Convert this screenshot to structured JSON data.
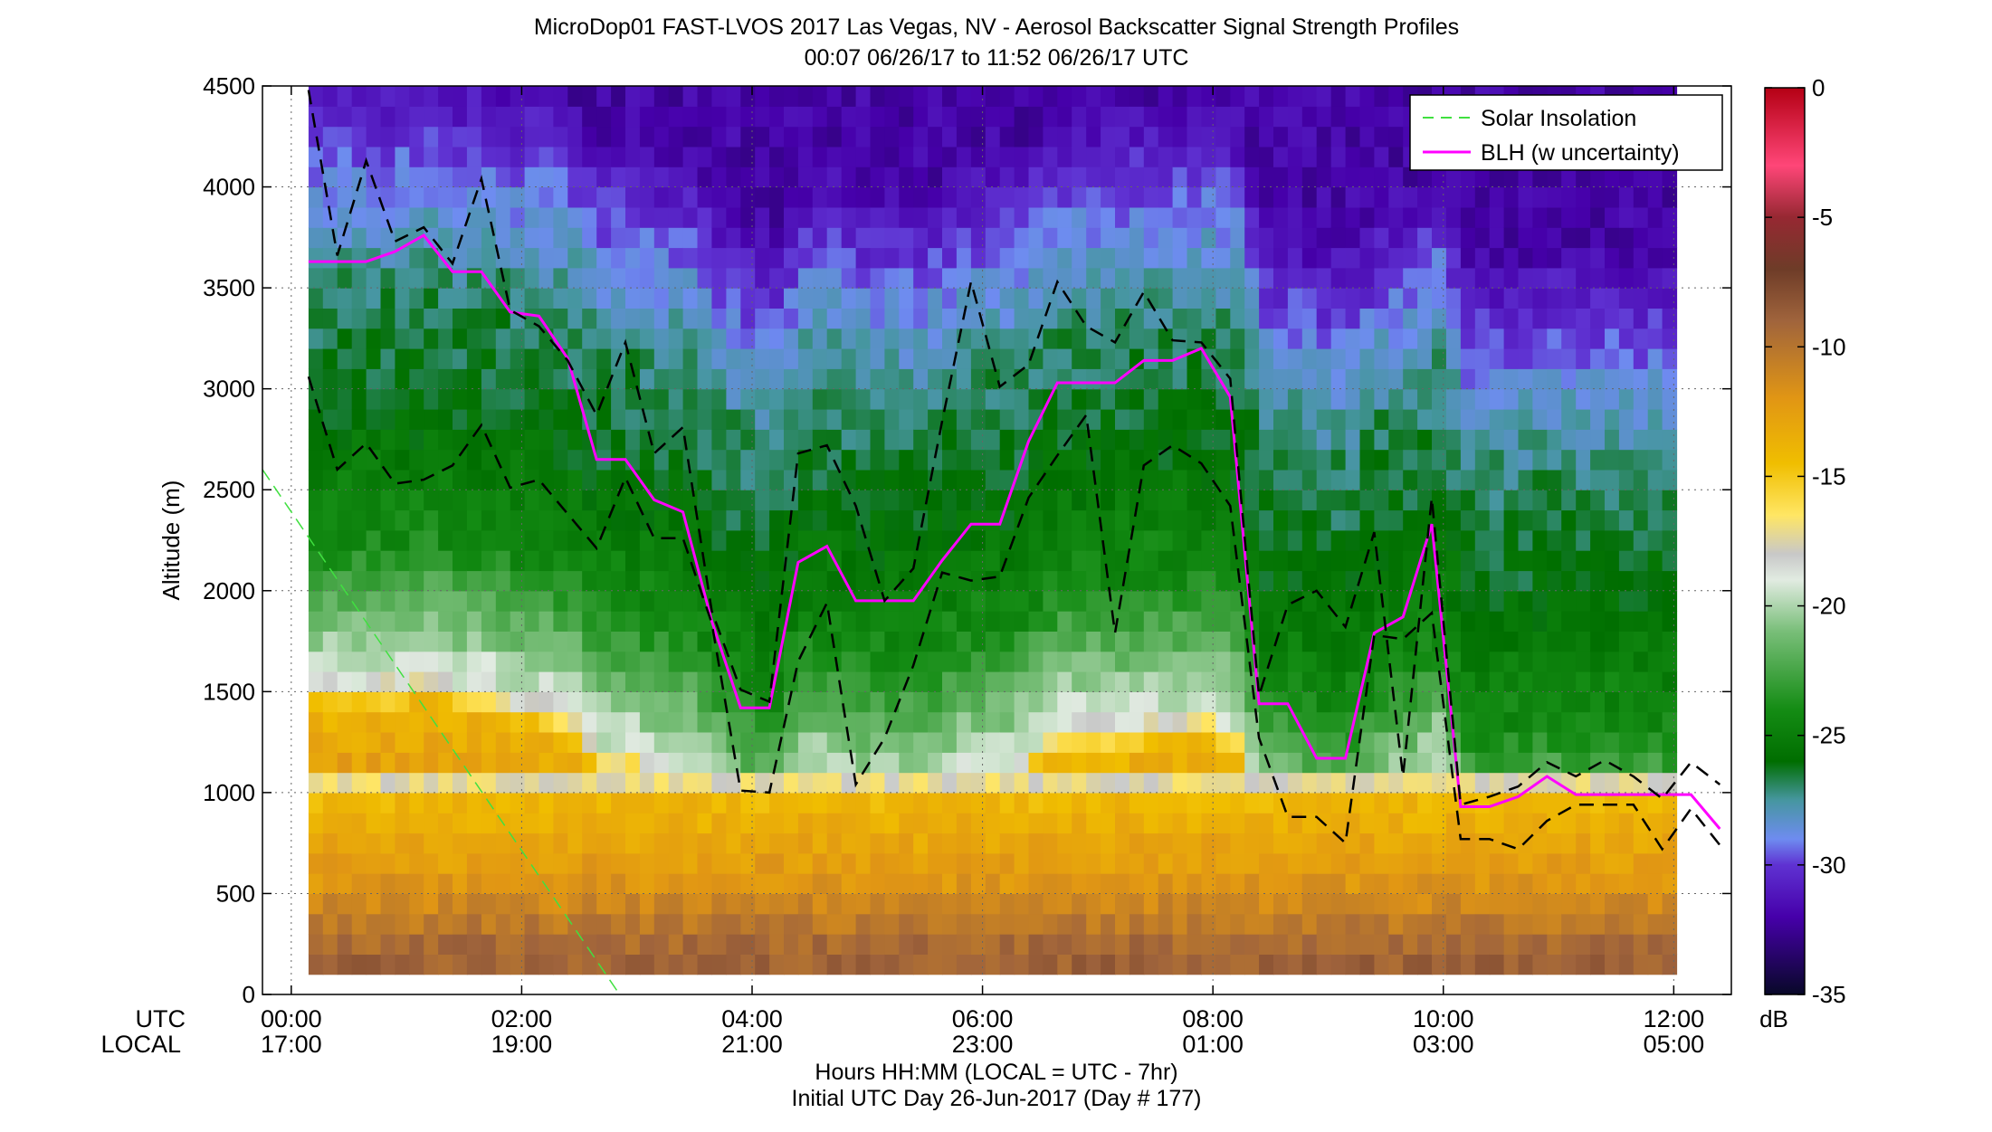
{
  "chart_data": {
    "type": "heatmap",
    "title": "MicroDop01 FAST-LVOS 2017 Las Vegas, NV - Aerosol Backscatter Signal Strength Profiles",
    "subtitle": "00:07 06/26/17 to 11:52 06/26/17  UTC",
    "ylabel": "Altitude (m)",
    "ylim": [
      0,
      4500
    ],
    "y_ticks": [
      "0",
      "500",
      "1000",
      "1500",
      "2000",
      "2500",
      "3000",
      "3500",
      "4000",
      "4500"
    ],
    "y_tick_values": [
      0,
      500,
      1000,
      1500,
      2000,
      2500,
      3000,
      3500,
      4000,
      4500
    ],
    "xlim_hours_utc": [
      -0.25,
      12.5
    ],
    "x_tick_hours": [
      0,
      2,
      4,
      6,
      8,
      10,
      12
    ],
    "x_ticks_utc": [
      "00:00",
      "02:00",
      "04:00",
      "06:00",
      "08:00",
      "10:00",
      "12:00"
    ],
    "x_ticks_local": [
      "17:00",
      "19:00",
      "21:00",
      "23:00",
      "01:00",
      "03:00",
      "05:00"
    ],
    "x_row_label_utc": "UTC",
    "x_row_label_local": "LOCAL",
    "xlabel": "Hours HH:MM  (LOCAL = UTC - 7hr)",
    "xlabel2": "Initial UTC Day 26-Jun-2017 (Day # 177)",
    "grid": true,
    "legend_position": "top-right",
    "legend": [
      "Solar Insolation",
      "BLH (w uncertainty)"
    ],
    "colorbar": {
      "label": "dB",
      "range": [
        -35,
        0
      ],
      "ticks": [
        "0",
        "-5",
        "-10",
        "-15",
        "-20",
        "-25",
        "-30",
        "-35"
      ],
      "tick_values": [
        0,
        -5,
        -10,
        -15,
        -20,
        -25,
        -30,
        -35
      ]
    },
    "heatmap_profile": {
      "data_time_range_hours": [
        0.15,
        11.92
      ],
      "data_altitude_range_m": [
        100,
        4500
      ],
      "description_levels_db": [
        {
          "alt": 150,
          "db": -9
        },
        {
          "alt": 500,
          "db": -12
        },
        {
          "alt": 900,
          "db": -14
        },
        {
          "alt": 1050,
          "db": -19
        },
        {
          "alt": 1700,
          "db": -24
        },
        {
          "alt": 2400,
          "db": -26
        },
        {
          "alt": 3000,
          "db": -27
        },
        {
          "alt": 3500,
          "db": -29
        },
        {
          "alt": 4100,
          "db": -32
        }
      ]
    },
    "series": [
      {
        "name": "BLH (w uncertainty)",
        "color": "#ff00ff",
        "x": [
          0.15,
          0.4,
          0.65,
          0.9,
          1.15,
          1.4,
          1.65,
          1.9,
          2.15,
          2.4,
          2.65,
          2.9,
          3.15,
          3.4,
          3.65,
          3.9,
          4.15,
          4.4,
          4.65,
          4.9,
          5.15,
          5.4,
          5.65,
          5.9,
          6.15,
          6.4,
          6.65,
          6.9,
          7.15,
          7.4,
          7.65,
          7.9,
          8.15,
          8.4,
          8.65,
          8.9,
          9.15,
          9.4,
          9.65,
          9.9,
          10.15,
          10.4,
          10.65,
          10.9,
          11.15,
          11.4,
          11.65,
          11.9,
          12.15,
          12.4
        ],
        "y": [
          3630,
          3630,
          3630,
          3680,
          3760,
          3580,
          3580,
          3380,
          3360,
          3150,
          2650,
          2650,
          2450,
          2390,
          1850,
          1420,
          1420,
          2140,
          2220,
          1950,
          1950,
          1950,
          2150,
          2330,
          2330,
          2740,
          3030,
          3030,
          3030,
          3140,
          3140,
          3200,
          2960,
          1440,
          1440,
          1170,
          1170,
          1790,
          1870,
          2330,
          930,
          930,
          980,
          1080,
          990,
          990,
          990,
          990,
          990,
          820
        ]
      },
      {
        "name": "",
        "color": "#000000",
        "dashed": true,
        "x": [
          0.15,
          0.4,
          0.65,
          0.9,
          1.15,
          1.4,
          1.65,
          1.9,
          2.15,
          2.4,
          2.65,
          2.9,
          3.15,
          3.4,
          3.65,
          3.9,
          4.15,
          4.4,
          4.65,
          4.9,
          5.15,
          5.4,
          5.65,
          5.9,
          6.15,
          6.4,
          6.65,
          6.9,
          7.15,
          7.4,
          7.65,
          7.9,
          8.15,
          8.4,
          8.65,
          8.9,
          9.15,
          9.4,
          9.65,
          9.9,
          10.15,
          10.4,
          10.65,
          10.9,
          11.15,
          11.4,
          11.65,
          11.9,
          12.15,
          12.4
        ],
        "y": [
          4480,
          3660,
          4130,
          3730,
          3800,
          3620,
          4040,
          3390,
          3310,
          3140,
          2870,
          3230,
          2680,
          2810,
          1900,
          1510,
          1450,
          2680,
          2720,
          2420,
          1950,
          2110,
          2840,
          3530,
          3010,
          3120,
          3530,
          3310,
          3230,
          3480,
          3240,
          3230,
          3050,
          1480,
          1930,
          2000,
          1820,
          2290,
          1080,
          2460,
          940,
          980,
          1030,
          1150,
          1080,
          1160,
          1080,
          970,
          1150,
          1040
        ]
      },
      {
        "name": "",
        "color": "#000000",
        "dashed": true,
        "x": [
          0.15,
          0.4,
          0.65,
          0.9,
          1.15,
          1.4,
          1.65,
          1.9,
          2.15,
          2.4,
          2.65,
          2.9,
          3.15,
          3.4,
          3.65,
          3.9,
          4.15,
          4.4,
          4.65,
          4.9,
          5.15,
          5.4,
          5.65,
          5.9,
          6.15,
          6.4,
          6.65,
          6.9,
          7.15,
          7.4,
          7.65,
          7.9,
          8.15,
          8.4,
          8.65,
          8.9,
          9.15,
          9.4,
          9.65,
          9.9,
          10.15,
          10.4,
          10.65,
          10.9,
          11.15,
          11.4,
          11.65,
          11.9,
          12.15,
          12.4
        ],
        "y": [
          3060,
          2600,
          2730,
          2530,
          2550,
          2620,
          2820,
          2510,
          2550,
          2380,
          2210,
          2560,
          2260,
          2260,
          1840,
          1010,
          1000,
          1650,
          1940,
          1040,
          1270,
          1630,
          2090,
          2050,
          2070,
          2460,
          2670,
          2870,
          1790,
          2620,
          2720,
          2630,
          2420,
          1270,
          880,
          880,
          750,
          1780,
          1760,
          1890,
          770,
          770,
          720,
          860,
          940,
          940,
          940,
          720,
          920,
          740
        ]
      },
      {
        "name": "Solar Insolation",
        "color": "#40e040",
        "dashed": true,
        "x": [
          -0.25,
          2.85
        ],
        "y": [
          2600,
          0
        ]
      }
    ]
  }
}
